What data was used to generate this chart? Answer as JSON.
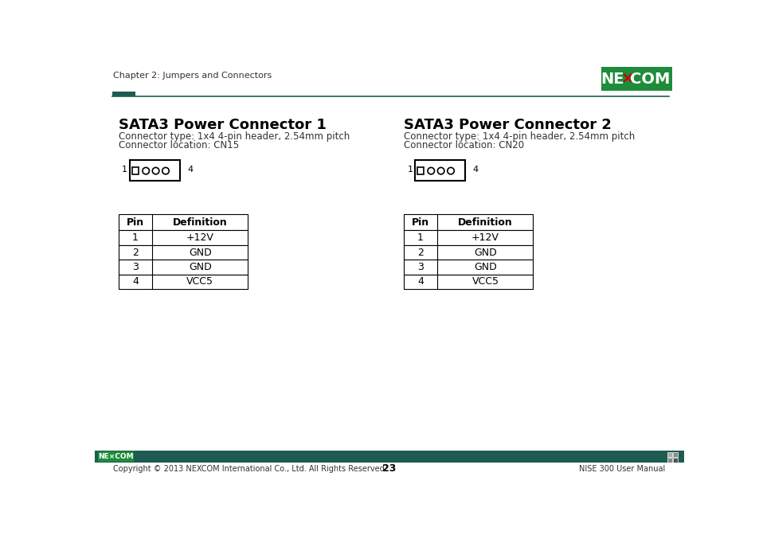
{
  "page_header_text": "Chapter 2: Jumpers and Connectors",
  "header_line_color": "#1e5c52",
  "header_rect_color": "#1e5c52",
  "nexcom_bg_color": "#1e8c3a",
  "section1_title": "SATA3 Power Connector 1",
  "section1_line1": "Connector type: 1x4 4-pin header, 2.54mm pitch",
  "section1_line2": "Connector location: CN15",
  "section2_title": "SATA3 Power Connector 2",
  "section2_line1": "Connector type: 1x4 4-pin header, 2.54mm pitch",
  "section2_line2": "Connector location: CN20",
  "table_header": [
    "Pin",
    "Definition"
  ],
  "table_rows": [
    [
      "1",
      "+12V"
    ],
    [
      "2",
      "GND"
    ],
    [
      "3",
      "GND"
    ],
    [
      "4",
      "VCC5"
    ]
  ],
  "footer_bg_color": "#1e5c52",
  "footer_text_left": "Copyright © 2013 NEXCOM International Co., Ltd. All Rights Reserved.",
  "footer_text_center": "23",
  "footer_text_right": "NISE 300 User Manual",
  "bg_color": "#ffffff",
  "text_color": "#000000"
}
